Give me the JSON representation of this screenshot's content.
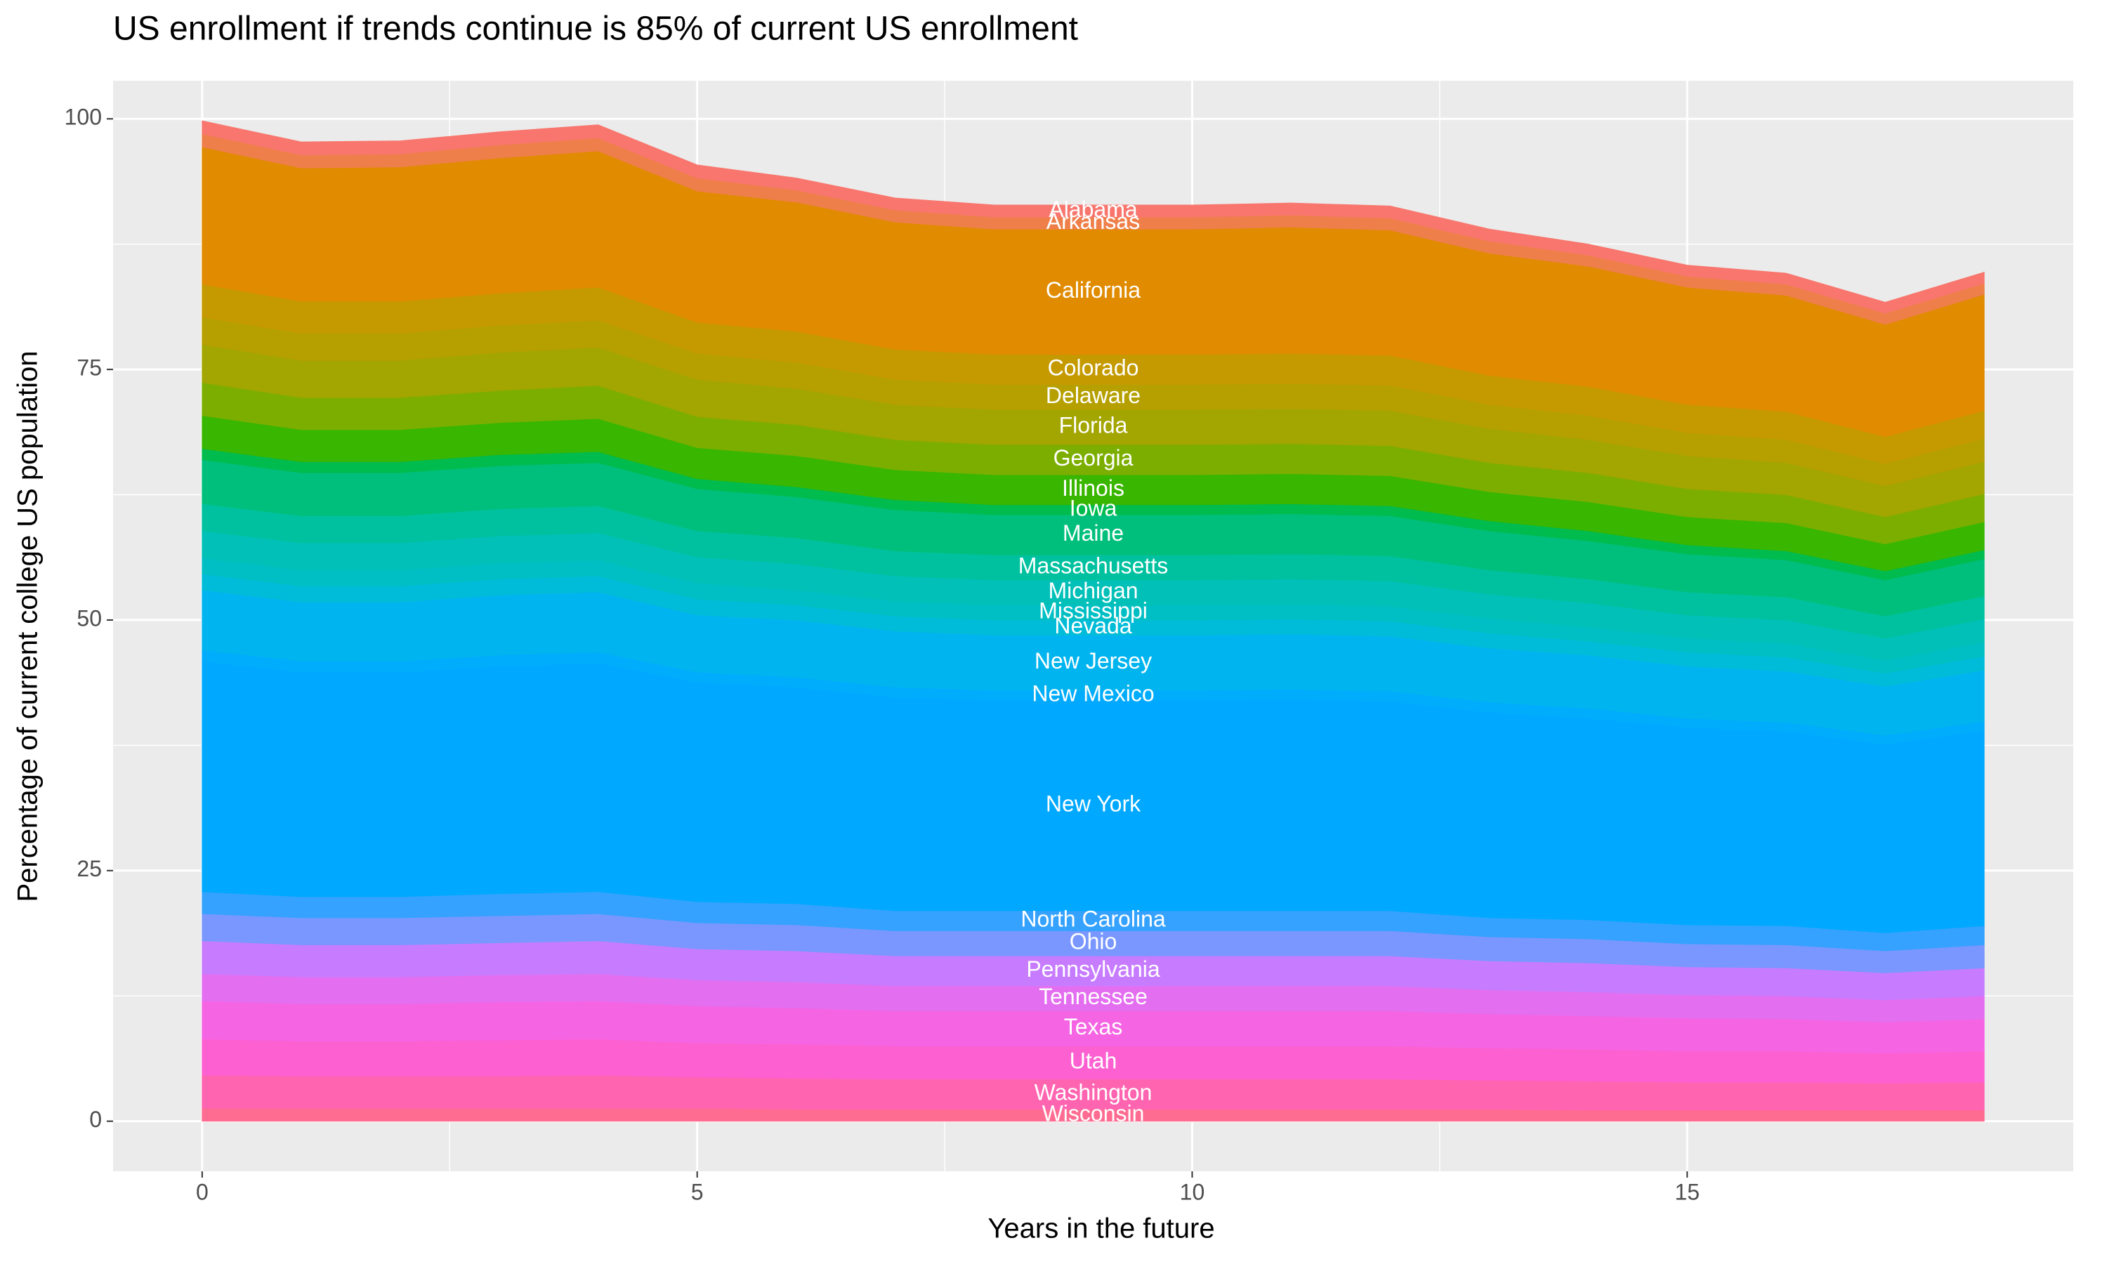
{
  "chart_data": {
    "type": "stacked-area",
    "title": "US enrollment if trends continue is 85% of current US enrollment",
    "x_label": "Years in the future",
    "y_label": "Percentage of current college US population",
    "x": [
      0,
      1,
      2,
      3,
      4,
      5,
      6,
      7,
      8,
      9,
      10,
      11,
      12,
      13,
      14,
      15,
      16,
      17,
      18
    ],
    "xlim": [
      -0.9,
      18.9
    ],
    "xticks": [
      0,
      5,
      10,
      15
    ],
    "ylim": [
      -5,
      103.8
    ],
    "yticks": [
      0,
      25,
      50,
      75,
      100
    ],
    "grid": true,
    "series": [
      {
        "name": "Alabama",
        "color": "#f8766d",
        "values": [
          1.3,
          1.3,
          1.3,
          1.3,
          1.3,
          1.3,
          1.2,
          1.2,
          1.2,
          1.2,
          1.2,
          1.2,
          1.2,
          1.2,
          1.1,
          1.1,
          1.1,
          1.1,
          1.1
        ]
      },
      {
        "name": "Arkansas",
        "color": "#ef7f4a",
        "values": [
          1.3,
          1.3,
          1.3,
          1.3,
          1.3,
          1.3,
          1.2,
          1.2,
          1.2,
          1.2,
          1.2,
          1.2,
          1.2,
          1.2,
          1.1,
          1.1,
          1.1,
          1.1,
          1.1
        ]
      },
      {
        "name": "California",
        "color": "#e08b00",
        "values": [
          13.7,
          13.3,
          13.4,
          13.5,
          13.6,
          13.1,
          12.9,
          12.7,
          12.5,
          12.5,
          12.5,
          12.6,
          12.5,
          12.2,
          12.0,
          11.7,
          11.6,
          11.2,
          11.6
        ]
      },
      {
        "name": "Colorado",
        "color": "#c49a00",
        "values": [
          3.3,
          3.2,
          3.2,
          3.2,
          3.3,
          3.1,
          3.1,
          3.0,
          3.0,
          3,
          3,
          3,
          3,
          2.9,
          2.9,
          2.8,
          2.8,
          2.7,
          2.8
        ]
      },
      {
        "name": "Delaware",
        "color": "#b5a000",
        "values": [
          2.7,
          2.7,
          2.7,
          2.7,
          2.7,
          2.6,
          2.6,
          2.5,
          2.5,
          2.5,
          2.5,
          2.5,
          2.5,
          2.4,
          2.4,
          2.3,
          2.3,
          2.2,
          2.3
        ]
      },
      {
        "name": "Florida",
        "color": "#a3a500",
        "values": [
          3.8,
          3.7,
          3.7,
          3.8,
          3.8,
          3.7,
          3.6,
          3.5,
          3.5,
          3.5,
          3.5,
          3.5,
          3.5,
          3.4,
          3.3,
          3.3,
          3.2,
          3.1,
          3.2
        ]
      },
      {
        "name": "Georgia",
        "color": "#7cae00",
        "values": [
          3.3,
          3.2,
          3.2,
          3.2,
          3.3,
          3.1,
          3.1,
          3.0,
          3.0,
          3,
          3,
          3,
          3,
          2.9,
          2.9,
          2.8,
          2.8,
          2.7,
          2.8
        ]
      },
      {
        "name": "Illinois",
        "color": "#39b600",
        "values": [
          3.3,
          3.2,
          3.2,
          3.2,
          3.3,
          3.1,
          3.1,
          3.0,
          3.0,
          3,
          3,
          3,
          3,
          2.9,
          2.9,
          2.8,
          2.8,
          2.7,
          2.8
        ]
      },
      {
        "name": "Iowa",
        "color": "#00bb4e",
        "values": [
          1.1,
          1.1,
          1.1,
          1.1,
          1.1,
          1.0,
          1.0,
          1.0,
          1.0,
          1,
          1,
          1,
          1,
          1.0,
          1.0,
          0.9,
          0.9,
          0.9,
          0.9
        ]
      },
      {
        "name": "Maine",
        "color": "#00bf7d",
        "values": [
          4.4,
          4.3,
          4.3,
          4.3,
          4.3,
          4.2,
          4.1,
          4.1,
          4.0,
          4,
          4,
          4,
          4,
          3.9,
          3.8,
          3.8,
          3.7,
          3.6,
          3.7
        ]
      },
      {
        "name": "Massachusetts",
        "color": "#00c19f",
        "values": [
          2.7,
          2.7,
          2.7,
          2.7,
          2.7,
          2.6,
          2.6,
          2.5,
          2.5,
          2.5,
          2.5,
          2.5,
          2.5,
          2.4,
          2.4,
          2.3,
          2.3,
          2.2,
          2.3
        ]
      },
      {
        "name": "Michigan",
        "color": "#00c0b8",
        "values": [
          2.7,
          2.7,
          2.7,
          2.7,
          2.7,
          2.6,
          2.6,
          2.5,
          2.5,
          2.5,
          2.5,
          2.5,
          2.5,
          2.4,
          2.4,
          2.3,
          2.3,
          2.2,
          2.3
        ]
      },
      {
        "name": "Mississippi",
        "color": "#00bfc4",
        "values": [
          1.6,
          1.6,
          1.6,
          1.6,
          1.6,
          1.6,
          1.5,
          1.5,
          1.5,
          1.5,
          1.5,
          1.5,
          1.5,
          1.5,
          1.4,
          1.4,
          1.4,
          1.3,
          1.4
        ]
      },
      {
        "name": "Nevada",
        "color": "#00bcd8",
        "values": [
          1.6,
          1.6,
          1.6,
          1.6,
          1.6,
          1.6,
          1.5,
          1.5,
          1.5,
          1.5,
          1.5,
          1.5,
          1.5,
          1.5,
          1.4,
          1.4,
          1.4,
          1.3,
          1.4
        ]
      },
      {
        "name": "New Jersey",
        "color": "#00b4ef",
        "values": [
          6.0,
          5.9,
          5.9,
          6.0,
          6.0,
          5.7,
          5.7,
          5.6,
          5.5,
          5.5,
          5.5,
          5.5,
          5.5,
          5.4,
          5.3,
          5.2,
          5.1,
          4.9,
          5.1
        ]
      },
      {
        "name": "New Mexico",
        "color": "#00acfc",
        "values": [
          1.1,
          1.1,
          1.1,
          1.1,
          1.1,
          1.0,
          1.0,
          1.0,
          1.0,
          1,
          1,
          1,
          1,
          1.0,
          1.0,
          0.9,
          0.9,
          0.9,
          0.9
        ]
      },
      {
        "name": "New York",
        "color": "#00a9ff",
        "values": [
          23.0,
          22.4,
          22.4,
          22.7,
          22.8,
          21.9,
          21.6,
          21.3,
          21.0,
          21,
          21,
          21.1,
          20.9,
          20.5,
          20.1,
          19.7,
          19.4,
          18.8,
          19.5
        ]
      },
      {
        "name": "North Carolina",
        "color": "#35a2ff",
        "values": [
          2.2,
          2.1,
          2.1,
          2.2,
          2.2,
          2.1,
          2.1,
          2.0,
          2.0,
          2,
          2,
          2,
          2,
          1.9,
          1.9,
          1.9,
          1.9,
          1.8,
          1.9
        ]
      },
      {
        "name": "Ohio",
        "color": "#7997ff",
        "values": [
          2.7,
          2.7,
          2.7,
          2.7,
          2.7,
          2.6,
          2.6,
          2.5,
          2.5,
          2.5,
          2.5,
          2.5,
          2.5,
          2.4,
          2.4,
          2.3,
          2.3,
          2.2,
          2.3
        ]
      },
      {
        "name": "Pennsylvania",
        "color": "#c77cff",
        "values": [
          3.3,
          3.2,
          3.2,
          3.2,
          3.3,
          3.1,
          3.1,
          3.0,
          3.0,
          3,
          3,
          3,
          3,
          2.9,
          2.9,
          2.8,
          2.8,
          2.7,
          2.8
        ]
      },
      {
        "name": "Tennessee",
        "color": "#e46ef0",
        "values": [
          2.7,
          2.7,
          2.7,
          2.7,
          2.7,
          2.6,
          2.6,
          2.5,
          2.5,
          2.5,
          2.5,
          2.5,
          2.5,
          2.4,
          2.4,
          2.3,
          2.3,
          2.2,
          2.3
        ]
      },
      {
        "name": "Texas",
        "color": "#f564e3",
        "values": [
          3.8,
          3.7,
          3.7,
          3.8,
          3.8,
          3.7,
          3.6,
          3.5,
          3.5,
          3.5,
          3.5,
          3.5,
          3.5,
          3.4,
          3.3,
          3.3,
          3.2,
          3.1,
          3.2
        ]
      },
      {
        "name": "Utah",
        "color": "#fd61d1",
        "values": [
          3.6,
          3.5,
          3.5,
          3.6,
          3.6,
          3.4,
          3.4,
          3.3,
          3.3,
          3.3,
          3.3,
          3.3,
          3.3,
          3.2,
          3.2,
          3.1,
          3.1,
          3.0,
          3.1
        ]
      },
      {
        "name": "Washington",
        "color": "#ff64b0",
        "values": [
          3.3,
          3.2,
          3.2,
          3.2,
          3.3,
          3.1,
          3.1,
          3.0,
          3.0,
          3,
          3,
          3,
          3,
          2.9,
          2.9,
          2.8,
          2.8,
          2.7,
          2.8
        ]
      },
      {
        "name": "Wisconsin",
        "color": "#ff6c91",
        "values": [
          1.3,
          1.3,
          1.3,
          1.3,
          1.3,
          1.3,
          1.2,
          1.2,
          1.2,
          1.2,
          1.2,
          1.2,
          1.2,
          1.2,
          1.1,
          1.1,
          1.1,
          1.1,
          1.1
        ]
      }
    ]
  }
}
